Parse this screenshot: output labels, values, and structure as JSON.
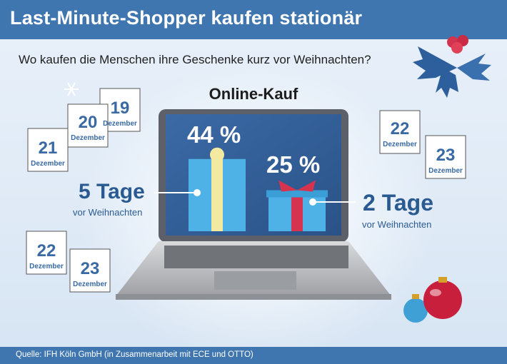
{
  "title": "Last-Minute-Shopper kaufen stationär",
  "subtitle": "Wo kaufen die Menschen ihre Geschenke kurz vor Weihnachten?",
  "footer": "Quelle: IFH Köln GmbH (in Zusammenarbeit mit ECE und OTTO)",
  "chart_data": {
    "type": "bar",
    "title": "Online-Kauf",
    "categories": [
      "5 Tage vor Weihnachten",
      "2 Tage vor Weihnachten"
    ],
    "values": [
      44,
      25
    ],
    "value_labels": [
      "44 %",
      "25 %"
    ],
    "unit": "%"
  },
  "labels": {
    "left_big": "5 Tage",
    "left_small": "vor Weihnachten",
    "right_big": "2 Tage",
    "right_small": "vor  Weihnachten"
  },
  "calendars": [
    {
      "num": "19",
      "month": "Dezember"
    },
    {
      "num": "20",
      "month": "Dezember"
    },
    {
      "num": "21",
      "month": "Dezember"
    },
    {
      "num": "22",
      "month": "Dezember"
    },
    {
      "num": "23",
      "month": "Dezember"
    },
    {
      "num": "22",
      "month": "Dezember"
    },
    {
      "num": "23",
      "month": "Dezember"
    }
  ],
  "colors": {
    "brand_blue": "#3f76b0",
    "screen": "#2f5d96",
    "gift_blue": "#4fb2e6",
    "ribbon_yellow": "#f3e9a0",
    "ribbon_red": "#d6334f",
    "text_blue": "#2a5a92"
  },
  "icons": [
    "snowflake-icon",
    "holly-icon",
    "christmas-ornament-icon",
    "laptop-icon",
    "gift-box-icon",
    "calendar-icon"
  ]
}
